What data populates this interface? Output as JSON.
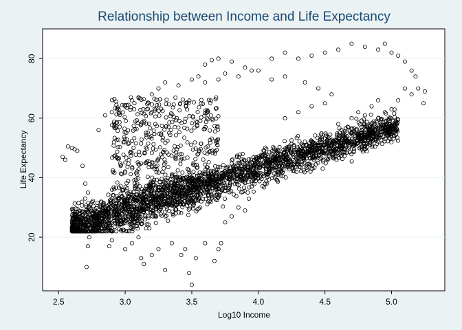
{
  "chart_data": {
    "type": "scatter",
    "title": "Relationship between Income and Life Expectancy",
    "xlabel": "Log10 Income",
    "ylabel": "Life Expectancy",
    "xlim": [
      2.38,
      5.4
    ],
    "ylim": [
      2,
      90
    ],
    "xticks": [
      2.5,
      3.0,
      3.5,
      4.0,
      4.5,
      5.0
    ],
    "xtick_labels": [
      "2.5",
      "3.0",
      "3.5",
      "4.0",
      "4.5",
      "5.0"
    ],
    "yticks": [
      20,
      40,
      60,
      80
    ],
    "ytick_labels": [
      "20",
      "40",
      "60",
      "80"
    ],
    "grid": "horizontal",
    "legend": "none",
    "marker": "hollow-circle",
    "colors": {
      "background": "#eaf2f3",
      "plot_area": "#ffffff",
      "title": "#1a476f",
      "marker": "#000000",
      "grid": "#eaf2f3"
    },
    "series": [
      {
        "points": [
          [
            2.53,
            47
          ],
          [
            2.55,
            46
          ],
          [
            2.57,
            50.5
          ],
          [
            2.6,
            50
          ],
          [
            2.62,
            49.5
          ],
          [
            2.64,
            49
          ],
          [
            2.68,
            44
          ],
          [
            2.7,
            38
          ],
          [
            2.72,
            35
          ],
          [
            2.65,
            31.5
          ],
          [
            2.7,
            33
          ],
          [
            2.74,
            31
          ],
          [
            2.71,
            10
          ],
          [
            2.72,
            17
          ],
          [
            2.73,
            20
          ],
          [
            2.75,
            25
          ],
          [
            2.8,
            28
          ],
          [
            2.85,
            30
          ],
          [
            2.88,
            17
          ],
          [
            2.9,
            19
          ],
          [
            3.0,
            16
          ],
          [
            3.05,
            18
          ],
          [
            3.1,
            20
          ],
          [
            3.12,
            13
          ],
          [
            3.14,
            11
          ],
          [
            3.2,
            14
          ],
          [
            3.25,
            16
          ],
          [
            3.3,
            9
          ],
          [
            3.35,
            18
          ],
          [
            3.42,
            14
          ],
          [
            3.45,
            16
          ],
          [
            3.48,
            8
          ],
          [
            3.5,
            4
          ],
          [
            3.53,
            13
          ],
          [
            3.6,
            18
          ],
          [
            3.67,
            12
          ],
          [
            3.7,
            16
          ],
          [
            3.72,
            18
          ],
          [
            3.75,
            25
          ],
          [
            3.8,
            27
          ],
          [
            3.85,
            30
          ],
          [
            3.9,
            29
          ],
          [
            3.92,
            35
          ],
          [
            3.95,
            37
          ],
          [
            4.0,
            40
          ],
          [
            4.05,
            38
          ],
          [
            4.1,
            44
          ],
          [
            4.15,
            42
          ],
          [
            4.2,
            46
          ],
          [
            4.3,
            48
          ],
          [
            4.4,
            52
          ],
          [
            4.5,
            51
          ],
          [
            4.6,
            53
          ],
          [
            4.7,
            55
          ],
          [
            4.75,
            54
          ],
          [
            4.8,
            56
          ],
          [
            4.85,
            57
          ],
          [
            4.9,
            60
          ],
          [
            4.95,
            62
          ],
          [
            5.0,
            63
          ],
          [
            5.05,
            66
          ],
          [
            5.1,
            70
          ],
          [
            5.15,
            68
          ],
          [
            5.2,
            70
          ],
          [
            5.24,
            65
          ],
          [
            5.25,
            69
          ],
          [
            4.9,
            66
          ],
          [
            4.85,
            64
          ],
          [
            4.8,
            61
          ],
          [
            4.75,
            62
          ],
          [
            4.7,
            60
          ],
          [
            4.6,
            58
          ],
          [
            4.2,
            60
          ],
          [
            4.3,
            62
          ],
          [
            4.4,
            64
          ],
          [
            4.5,
            65
          ],
          [
            4.55,
            68
          ],
          [
            4.45,
            70
          ],
          [
            4.35,
            72
          ],
          [
            4.2,
            74
          ],
          [
            4.1,
            73
          ],
          [
            4.0,
            76
          ],
          [
            3.9,
            77
          ],
          [
            3.8,
            79
          ],
          [
            3.7,
            80
          ],
          [
            3.65,
            79.5
          ],
          [
            3.6,
            78
          ],
          [
            4.7,
            85
          ],
          [
            4.8,
            84
          ],
          [
            4.9,
            83
          ],
          [
            4.95,
            85
          ],
          [
            5.0,
            82
          ],
          [
            5.05,
            81
          ],
          [
            5.1,
            79
          ],
          [
            5.15,
            76
          ],
          [
            5.18,
            74
          ],
          [
            4.6,
            83
          ],
          [
            4.5,
            82
          ],
          [
            4.4,
            81
          ],
          [
            4.3,
            80
          ],
          [
            4.2,
            82
          ],
          [
            4.1,
            80
          ],
          [
            2.8,
            56
          ],
          [
            2.85,
            61
          ],
          [
            2.9,
            62
          ],
          [
            2.95,
            63
          ],
          [
            3.0,
            64
          ],
          [
            3.05,
            66
          ],
          [
            3.1,
            67
          ],
          [
            3.2,
            68
          ],
          [
            3.25,
            70
          ],
          [
            3.3,
            72
          ],
          [
            3.4,
            71
          ],
          [
            3.5,
            73
          ],
          [
            3.55,
            74
          ],
          [
            3.6,
            72
          ],
          [
            3.7,
            73
          ],
          [
            3.75,
            75
          ],
          [
            3.85,
            74
          ],
          [
            3.95,
            76
          ]
        ]
      }
    ]
  }
}
